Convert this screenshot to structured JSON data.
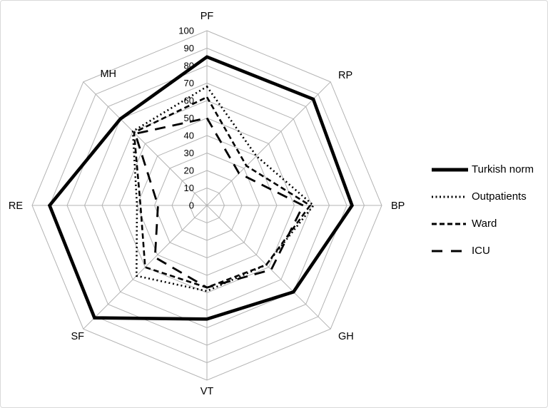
{
  "figure": {
    "background": "#ffffff",
    "border_color": "#d9d9d9",
    "series_color": "#000000",
    "grid_color": "#b3b3b3"
  },
  "chart_data": {
    "type": "radar",
    "title": "",
    "categories": [
      "PF",
      "RP",
      "BP",
      "GH",
      "VT",
      "SF",
      "RE",
      "MH"
    ],
    "axis_range": [
      0,
      100
    ],
    "tick_interval": 10,
    "tick_labels": [
      "100",
      "90",
      "80",
      "70",
      "60",
      "50",
      "40",
      "30",
      "20",
      "10",
      "0"
    ],
    "grid": "on",
    "grid_color": "#b3b3b3",
    "legend_position": "right",
    "series": [
      {
        "name": "Turkish norm",
        "style": "solid",
        "color": "#000000",
        "stroke_width": 4.6,
        "values": [
          85,
          86,
          83,
          70,
          65,
          91,
          90,
          70
        ]
      },
      {
        "name": "Outpatients",
        "style": "dotted",
        "color": "#000000",
        "stroke_width": 2.6,
        "values": [
          68,
          40,
          61,
          48,
          49,
          57,
          40,
          60
        ]
      },
      {
        "name": "Ward",
        "style": "short-dash",
        "color": "#000000",
        "stroke_width": 2.6,
        "values": [
          62,
          32,
          59,
          48,
          47,
          50,
          38,
          59
        ]
      },
      {
        "name": "ICU",
        "style": "long-dash",
        "color": "#000000",
        "stroke_width": 2.8,
        "values": [
          50,
          26,
          55,
          52,
          47,
          42,
          28,
          58
        ]
      }
    ]
  }
}
